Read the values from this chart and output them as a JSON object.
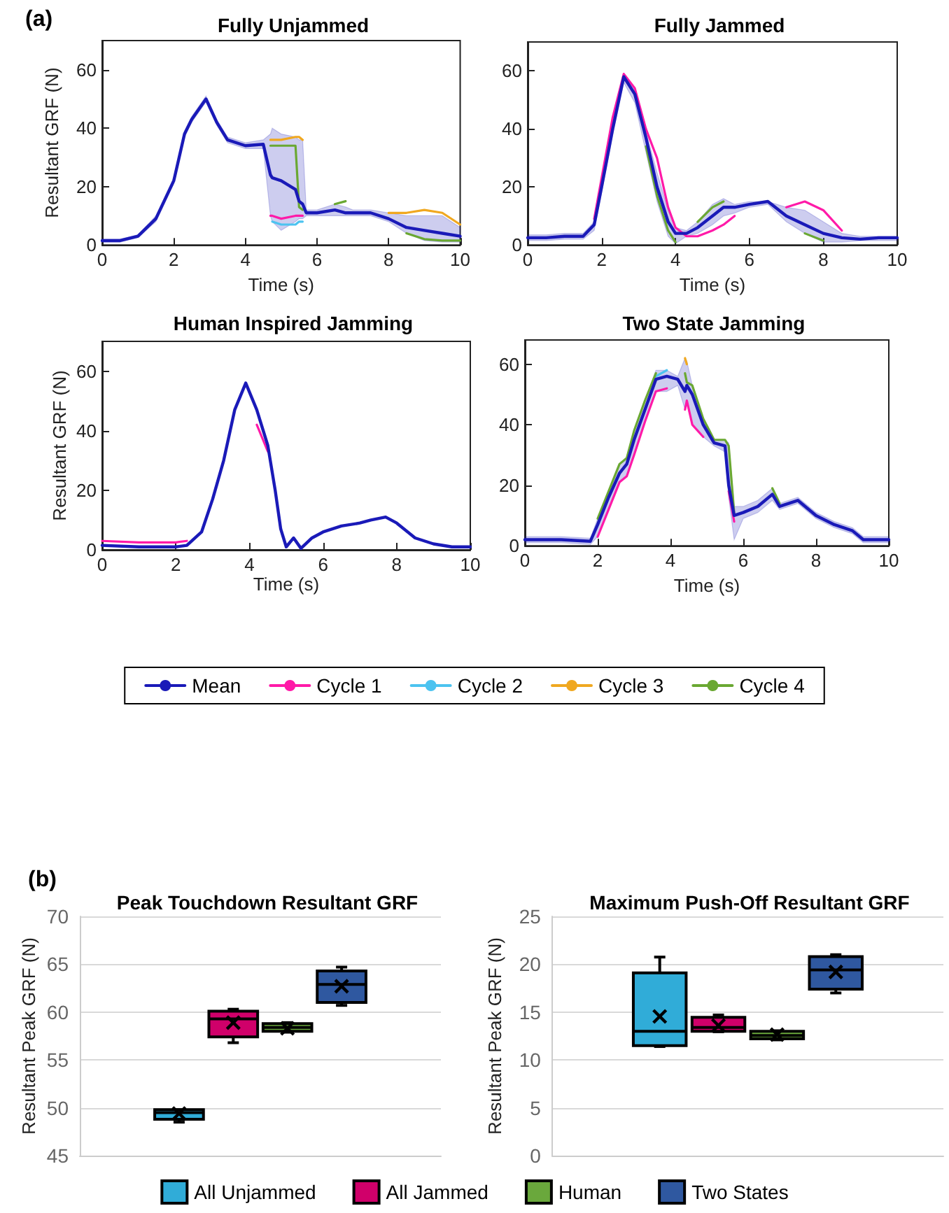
{
  "chart_data": [
    {
      "type": "line",
      "title": "Fully Unjammed",
      "xlabel": "Time (s)",
      "ylabel": "Resultant GRF (N)",
      "annotations": [
        "(a)"
      ],
      "marker": "none",
      "xlim": [
        0,
        10
      ],
      "ylim": [
        0,
        70
      ],
      "xticks": [
        0,
        2,
        4,
        6,
        8,
        10
      ],
      "yticks": [
        0,
        20,
        40,
        60
      ],
      "x": [
        0,
        0.5,
        1,
        1.5,
        2,
        2.3,
        2.5,
        2.9,
        3.2,
        3.5,
        4,
        4.5,
        4.7,
        4.75,
        5,
        5.4,
        5.5,
        5.6,
        5.7,
        6,
        6.5,
        6.8,
        7,
        7.5,
        8,
        8.5,
        9,
        9.5,
        10
      ],
      "series": [
        {
          "color": "#1a1ab8",
          "values": [
            1.5,
            1.5,
            3,
            9,
            22,
            38,
            43,
            50,
            42,
            36,
            34,
            34.5,
            24,
            23,
            22,
            19,
            15,
            14,
            11,
            11,
            12,
            11,
            11,
            11,
            9,
            6,
            5,
            4,
            3
          ],
          "lower": [
            1,
            1,
            2.5,
            8,
            21,
            37,
            42,
            49,
            41,
            35,
            33,
            33,
            10,
            8,
            5,
            8,
            9,
            9,
            10,
            10,
            10,
            10,
            10,
            10,
            8,
            4,
            1.5,
            1,
            1
          ],
          "upper": [
            2,
            2,
            3.5,
            10,
            23,
            39,
            44,
            51,
            43,
            37,
            35,
            36,
            38,
            40,
            38,
            37,
            36,
            36,
            12,
            12,
            14,
            13,
            12,
            12,
            11,
            10,
            10,
            10,
            6
          ]
        },
        {
          "color": "#ff1aa8",
          "values": [
            null,
            null,
            null,
            null,
            null,
            null,
            null,
            null,
            null,
            null,
            null,
            null,
            10,
            10,
            9,
            10,
            10,
            10,
            null,
            null,
            null,
            null,
            null,
            null,
            null,
            null,
            null,
            null,
            null
          ]
        },
        {
          "color": "#4cc3f0",
          "values": [
            null,
            null,
            null,
            null,
            null,
            null,
            null,
            null,
            null,
            null,
            null,
            null,
            null,
            8,
            7,
            7,
            8,
            8,
            null,
            null,
            null,
            null,
            null,
            null,
            null,
            null,
            null,
            null,
            null
          ]
        },
        {
          "color": "#f0a820",
          "values": [
            null,
            null,
            null,
            null,
            null,
            null,
            null,
            null,
            null,
            null,
            null,
            null,
            36,
            36,
            36,
            37,
            37,
            36,
            null,
            null,
            null,
            null,
            null,
            null,
            11,
            11,
            12,
            11,
            7
          ]
        },
        {
          "color": "#6aa832",
          "values": [
            null,
            null,
            null,
            null,
            null,
            null,
            null,
            null,
            null,
            null,
            null,
            null,
            34,
            34,
            34,
            34,
            13,
            12,
            null,
            null,
            14,
            15,
            null,
            null,
            null,
            4,
            2,
            1.5,
            1.5
          ]
        }
      ]
    },
    {
      "type": "line",
      "title": "Fully Jammed",
      "xlabel": "Time (s)",
      "marker": "none",
      "xlim": [
        0,
        10
      ],
      "ylim": [
        0,
        70
      ],
      "xticks": [
        0,
        2,
        4,
        6,
        8,
        10
      ],
      "yticks": [
        0,
        20,
        40,
        60
      ],
      "x": [
        0,
        0.5,
        1,
        1.5,
        1.8,
        2,
        2.3,
        2.6,
        2.9,
        3.2,
        3.5,
        3.8,
        4,
        4.3,
        4.6,
        5,
        5.3,
        5.6,
        6,
        6.5,
        7,
        7.5,
        8,
        8.5,
        9,
        9.5,
        10
      ],
      "series": [
        {
          "color": "#1a1ab8",
          "values": [
            2.5,
            2.5,
            3,
            3,
            7,
            20,
            40,
            58,
            52,
            37,
            20,
            8,
            4,
            4,
            6,
            10,
            13,
            13,
            14,
            15,
            10,
            7,
            4,
            2.5,
            2,
            2.5,
            2.5
          ],
          "lower": [
            1.5,
            1.5,
            2,
            2,
            5,
            18,
            38,
            56,
            49,
            32,
            15,
            3,
            0.5,
            3,
            4,
            7,
            10,
            11,
            13,
            14,
            8,
            4,
            1,
            1,
            1.5,
            1.5,
            1.5
          ],
          "upper": [
            3.5,
            3.5,
            4,
            4,
            8,
            22,
            42,
            59,
            54,
            39,
            25,
            12,
            6,
            5,
            8,
            14,
            16,
            14,
            15,
            15,
            13,
            12,
            8,
            4,
            3,
            3,
            3
          ]
        },
        {
          "color": "#ff1aa8",
          "values": [
            null,
            null,
            null,
            null,
            9,
            23,
            44,
            59,
            54,
            40,
            30,
            13,
            6,
            3,
            3,
            5,
            7,
            10,
            null,
            null,
            13,
            15,
            12,
            5,
            null,
            null,
            null
          ]
        },
        {
          "color": "#6aa832",
          "values": [
            null,
            null,
            null,
            null,
            null,
            null,
            null,
            null,
            null,
            34,
            17,
            5,
            1,
            null,
            8,
            13,
            15,
            null,
            null,
            null,
            null,
            4,
            1.5,
            null,
            null,
            null,
            null
          ]
        }
      ]
    },
    {
      "type": "line",
      "title": "Human Inspired Jamming",
      "xlabel": "Time (s)",
      "ylabel": "Resultant GRF (N)",
      "marker": "none",
      "legend": "bottom",
      "xlim": [
        0,
        10
      ],
      "ylim": [
        0,
        70
      ],
      "xticks": [
        0,
        2,
        4,
        6,
        8,
        10
      ],
      "yticks": [
        0,
        20,
        40,
        60
      ],
      "x": [
        0,
        1,
        2,
        2.3,
        2.7,
        3,
        3.3,
        3.6,
        3.9,
        4.2,
        4.5,
        4.7,
        4.85,
        5,
        5.2,
        5.4,
        5.7,
        6,
        6.5,
        7,
        7.3,
        7.7,
        8,
        8.5,
        9,
        9.5,
        10
      ],
      "series": [
        {
          "name": "Mean",
          "color": "#1a1ab8",
          "values": [
            1.5,
            1,
            1,
            1.5,
            6,
            17,
            30,
            47,
            56,
            47,
            35,
            20,
            7,
            1,
            4,
            0.5,
            4,
            6,
            8,
            9,
            10,
            11,
            9,
            4,
            2,
            1,
            1
          ]
        },
        {
          "name": "Cycle 1",
          "color": "#ff1aa8",
          "values": [
            3,
            2.5,
            2.5,
            3,
            null,
            null,
            null,
            null,
            null,
            42,
            33,
            null,
            null,
            null,
            null,
            null,
            null,
            null,
            null,
            null,
            null,
            null,
            null,
            null,
            null,
            null,
            null
          ]
        },
        {
          "name": "Cycle 2",
          "color": "#4cc3f0",
          "values": [
            null,
            null,
            null,
            null,
            null,
            null,
            null,
            null,
            null,
            null,
            null,
            null,
            null,
            null,
            null,
            null,
            null,
            null,
            null,
            null,
            null,
            null,
            null,
            null,
            null,
            null,
            null
          ]
        },
        {
          "name": "Cycle 3",
          "color": "#f0a820",
          "values": [
            null,
            null,
            null,
            null,
            null,
            null,
            null,
            null,
            null,
            null,
            null,
            null,
            null,
            null,
            null,
            null,
            null,
            null,
            null,
            null,
            null,
            null,
            null,
            null,
            null,
            null,
            null
          ]
        },
        {
          "name": "Cycle 4",
          "color": "#6aa832",
          "values": [
            null,
            null,
            null,
            null,
            null,
            null,
            null,
            null,
            null,
            null,
            null,
            null,
            null,
            null,
            null,
            null,
            null,
            null,
            null,
            null,
            null,
            null,
            null,
            null,
            null,
            null,
            null
          ]
        }
      ]
    },
    {
      "type": "line",
      "title": "Two State Jamming",
      "xlabel": "Time (s)",
      "marker": "none",
      "xlim": [
        0,
        10
      ],
      "ylim": [
        0,
        68
      ],
      "xticks": [
        0,
        2,
        4,
        6,
        8,
        10
      ],
      "yticks": [
        0,
        20,
        40,
        60
      ],
      "x": [
        0,
        1,
        1.8,
        2,
        2.3,
        2.6,
        2.8,
        3,
        3.3,
        3.6,
        3.9,
        4.2,
        4.4,
        4.45,
        4.6,
        4.9,
        5.2,
        5.5,
        5.6,
        5.75,
        6,
        6.4,
        6.8,
        7,
        7.5,
        8,
        8.5,
        9,
        9.3,
        10
      ],
      "series": [
        {
          "color": "#1a1ab8",
          "values": [
            2,
            2,
            1.5,
            7,
            16,
            24,
            27,
            35,
            45,
            55,
            56,
            55,
            51,
            53,
            50,
            40,
            34,
            33,
            20,
            10,
            11,
            13,
            17,
            13,
            15,
            10,
            7,
            5,
            2,
            2
          ],
          "lower": [
            1,
            1,
            0.5,
            3,
            12,
            21,
            23,
            30,
            41,
            51,
            51,
            53,
            45,
            47,
            40,
            36,
            33,
            31,
            16,
            2,
            9,
            11,
            15,
            12,
            14,
            9,
            6,
            4,
            1,
            1
          ],
          "upper": [
            3,
            3,
            2.5,
            9,
            18,
            27,
            29,
            38,
            48,
            58,
            58,
            56,
            62,
            61,
            53,
            42,
            35,
            35,
            34,
            13,
            13,
            15,
            19,
            14,
            16,
            11,
            8,
            6,
            3,
            3
          ]
        },
        {
          "color": "#ff1aa8",
          "values": [
            null,
            null,
            null,
            3,
            12,
            21,
            23,
            30,
            41,
            51,
            52,
            null,
            45,
            48,
            40,
            36,
            null,
            null,
            18,
            8,
            null,
            null,
            null,
            null,
            null,
            null,
            null,
            null,
            null,
            null
          ]
        },
        {
          "color": "#4cc3f0",
          "values": [
            null,
            null,
            null,
            null,
            null,
            null,
            null,
            null,
            null,
            56,
            58,
            null,
            null,
            null,
            null,
            null,
            null,
            null,
            null,
            null,
            null,
            null,
            null,
            null,
            null,
            null,
            null,
            null,
            null,
            null
          ]
        },
        {
          "color": "#f0a820",
          "values": [
            null,
            null,
            null,
            null,
            null,
            null,
            null,
            null,
            null,
            null,
            null,
            null,
            62,
            60,
            null,
            null,
            null,
            null,
            null,
            null,
            null,
            null,
            null,
            null,
            null,
            null,
            null,
            null,
            null,
            null
          ]
        },
        {
          "color": "#6aa832",
          "values": [
            null,
            null,
            null,
            9,
            18,
            27,
            29,
            38,
            48,
            57,
            null,
            null,
            57,
            54,
            53,
            42,
            35,
            35,
            33,
            11,
            null,
            null,
            19,
            14,
            null,
            null,
            null,
            null,
            null,
            null
          ]
        }
      ]
    },
    {
      "type": "box",
      "title": "Peak Touchdown Resultant GRF",
      "ylabel": "Resultant Peak GRF (N)",
      "annotations": [
        "(b)"
      ],
      "legend": "bottom",
      "grid": "y",
      "categories": [
        null
      ],
      "ylim": [
        45,
        70
      ],
      "yticks": [
        45,
        50,
        55,
        60,
        65,
        70
      ],
      "series": [
        {
          "name": "All Unjammed",
          "color": "#30acd8",
          "boxes": [
            {
              "low": 48.5,
              "q1": 48.8,
              "median": 49.5,
              "q3": 49.8,
              "high": 49.8,
              "mean": 49.4
            }
          ]
        },
        {
          "name": "All Jammed",
          "color": "#d0006a",
          "boxes": [
            {
              "low": 56.8,
              "q1": 57.4,
              "median": 59.3,
              "q3": 60.1,
              "high": 60.3,
              "mean": 58.9
            }
          ]
        },
        {
          "name": "Human",
          "color": "#6aa83c",
          "boxes": [
            {
              "low": 57.9,
              "q1": 58.0,
              "median": 58.4,
              "q3": 58.8,
              "high": 58.9,
              "mean": 58.3
            }
          ]
        },
        {
          "name": "Two States",
          "color": "#2f58a0",
          "boxes": [
            {
              "low": 60.7,
              "q1": 61.0,
              "median": 62.9,
              "q3": 64.3,
              "high": 64.7,
              "mean": 62.7
            }
          ]
        }
      ]
    },
    {
      "type": "box",
      "title": "Maximum Push-Off Resultant GRF",
      "ylabel": "Resultant Peak GRF (N)",
      "grid": "y",
      "categories": [
        null
      ],
      "ylim": [
        0,
        25
      ],
      "yticks": [
        0,
        5,
        10,
        15,
        20,
        25
      ],
      "series": [
        {
          "color": "#30acd8",
          "boxes": [
            {
              "low": 11.4,
              "q1": 11.5,
              "median": 13.0,
              "q3": 19.1,
              "high": 20.75,
              "mean": 14.55
            }
          ]
        },
        {
          "color": "#d0006a",
          "boxes": [
            {
              "low": 12.95,
              "q1": 13.0,
              "median": 13.4,
              "q3": 14.45,
              "high": 14.7,
              "mean": 13.6
            }
          ]
        },
        {
          "color": "#6aa83c",
          "boxes": [
            {
              "low": 12.1,
              "q1": 12.2,
              "median": 12.55,
              "q3": 13.0,
              "high": 13.05,
              "mean": 12.65
            }
          ]
        },
        {
          "color": "#2f58a0",
          "boxes": [
            {
              "low": 17.0,
              "q1": 17.4,
              "median": 19.4,
              "q3": 20.8,
              "high": 21.0,
              "mean": 19.2
            }
          ]
        }
      ]
    }
  ]
}
